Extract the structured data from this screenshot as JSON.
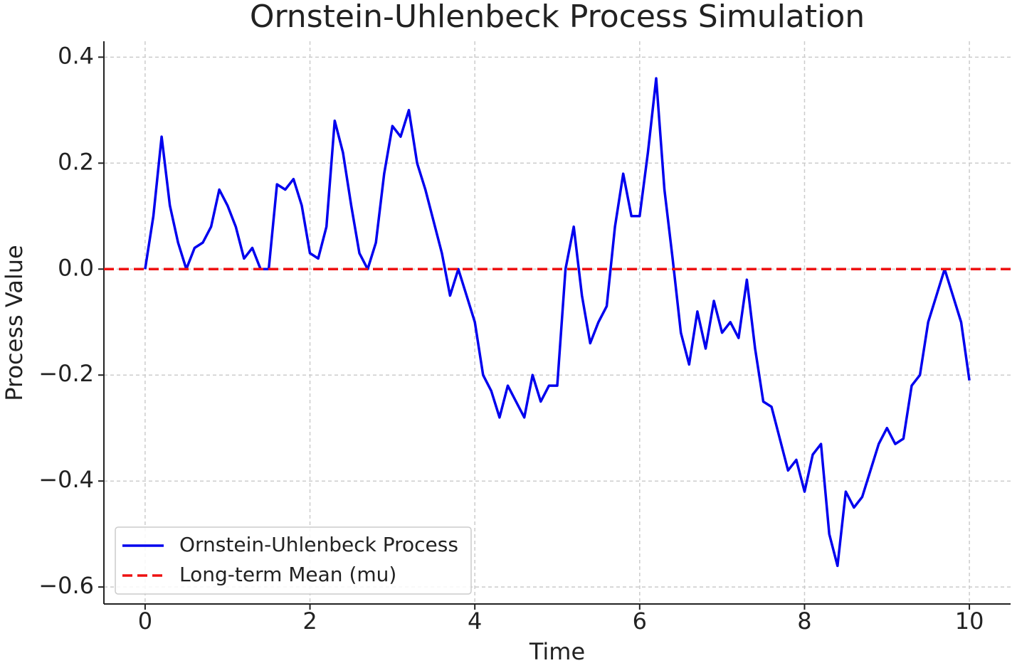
{
  "chart_data": {
    "type": "line",
    "title": "Ornstein-Uhlenbeck Process Simulation",
    "xlabel": "Time",
    "ylabel": "Process Value",
    "x": [
      0,
      0.1,
      0.2,
      0.3,
      0.4,
      0.5,
      0.6,
      0.7,
      0.8,
      0.9,
      1,
      1.1,
      1.2,
      1.3,
      1.4,
      1.5,
      1.6,
      1.7,
      1.8,
      1.9,
      2,
      2.1,
      2.2,
      2.3,
      2.4,
      2.5,
      2.6,
      2.7,
      2.8,
      2.9,
      3,
      3.1,
      3.2,
      3.3,
      3.4,
      3.5,
      3.6,
      3.7,
      3.8,
      3.9,
      4,
      4.1,
      4.2,
      4.3,
      4.4,
      4.5,
      4.6,
      4.7,
      4.8,
      4.9,
      5,
      5.1,
      5.2,
      5.3,
      5.4,
      5.5,
      5.6,
      5.7,
      5.8,
      5.9,
      6,
      6.1,
      6.2,
      6.3,
      6.4,
      6.5,
      6.6,
      6.7,
      6.8,
      6.9,
      7,
      7.1,
      7.2,
      7.3,
      7.4,
      7.5,
      7.6,
      7.7,
      7.8,
      7.9,
      8,
      8.1,
      8.2,
      8.3,
      8.4,
      8.5,
      8.6,
      8.7,
      8.8,
      8.9,
      9,
      9.1,
      9.2,
      9.3,
      9.4,
      9.5,
      9.6,
      9.7,
      9.8,
      9.9,
      10
    ],
    "series": [
      {
        "name": "Ornstein-Uhlenbeck Process",
        "color": "#0000ee",
        "values": [
          0,
          0.1,
          0.25,
          0.12,
          0.05,
          0,
          0.04,
          0.05,
          0.08,
          0.15,
          0.12,
          0.08,
          0.02,
          0.04,
          0,
          0,
          0.16,
          0.15,
          0.17,
          0.12,
          0.03,
          0.02,
          0.08,
          0.28,
          0.22,
          0.12,
          0.03,
          0,
          0.05,
          0.18,
          0.27,
          0.25,
          0.3,
          0.2,
          0.15,
          0.09,
          0.03,
          -0.05,
          0,
          -0.05,
          -0.1,
          -0.2,
          -0.23,
          -0.28,
          -0.22,
          -0.25,
          -0.28,
          -0.2,
          -0.25,
          -0.22,
          -0.22,
          0,
          0.08,
          -0.05,
          -0.14,
          -0.1,
          -0.07,
          0.08,
          0.18,
          0.1,
          0.1,
          0.22,
          0.36,
          0.15,
          0.02,
          -0.12,
          -0.18,
          -0.08,
          -0.15,
          -0.06,
          -0.12,
          -0.1,
          -0.13,
          -0.02,
          -0.15,
          -0.25,
          -0.26,
          -0.32,
          -0.38,
          -0.36,
          -0.42,
          -0.35,
          -0.33,
          -0.5,
          -0.56,
          -0.42,
          -0.45,
          -0.43,
          -0.38,
          -0.33,
          -0.3,
          -0.33,
          -0.32,
          -0.22,
          -0.2,
          -0.1,
          -0.05,
          0,
          -0.05,
          -0.1,
          -0.21
        ]
      }
    ],
    "hlines": [
      {
        "name": "Long-term Mean (mu)",
        "color": "#ee1111",
        "y": 0,
        "style": "dashed"
      }
    ],
    "xlim": [
      -0.5,
      10.5
    ],
    "ylim": [
      -0.632,
      0.43
    ],
    "xticks": [
      0,
      2,
      4,
      6,
      8,
      10
    ],
    "yticks": [
      {
        "value": -0.6,
        "label": "−0.6"
      },
      {
        "value": -0.4,
        "label": "−0.4"
      },
      {
        "value": -0.2,
        "label": "−0.2"
      },
      {
        "value": 0,
        "label": "0.0"
      },
      0.2,
      0.4
    ],
    "grid": true,
    "legend": "lower left"
  }
}
